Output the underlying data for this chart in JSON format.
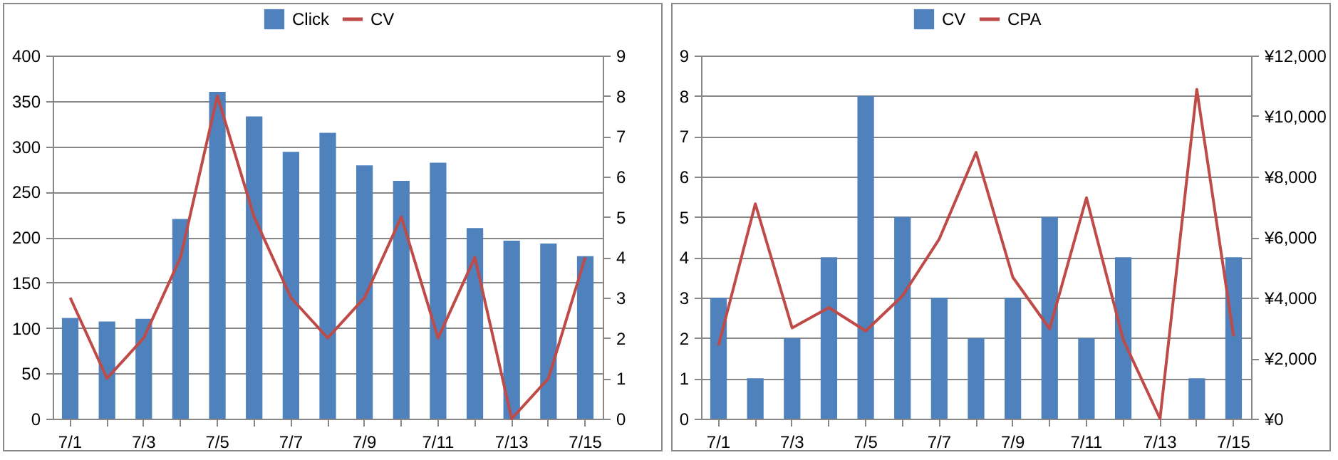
{
  "chart_data": [
    {
      "type": "bar",
      "categories": [
        "7/1",
        null,
        "7/3",
        null,
        "7/5",
        null,
        "7/7",
        null,
        "7/9",
        null,
        "7/11",
        null,
        "7/13",
        null,
        "7/15"
      ],
      "series": [
        {
          "name": "Click",
          "color": "#4f81bd",
          "values": [
            111,
            107,
            110,
            220,
            360,
            333,
            294,
            315,
            279,
            262,
            282,
            210,
            196,
            193,
            179
          ]
        },
        {
          "name": "CV",
          "type": "line",
          "axis": "y2",
          "color": "#be4b48",
          "values": [
            3,
            1,
            2,
            4,
            8,
            5,
            3,
            2,
            3,
            5,
            2,
            4,
            0,
            1,
            4
          ]
        }
      ],
      "ylim": [
        0,
        400
      ],
      "yticks": [
        0,
        50,
        100,
        150,
        200,
        250,
        300,
        350,
        400
      ],
      "y2lim": [
        0,
        9
      ],
      "y2ticks": [
        0,
        1,
        2,
        3,
        4,
        5,
        6,
        7,
        8,
        9
      ],
      "grid": "y",
      "legend": "top",
      "marker": "none",
      "line_style": "solid"
    },
    {
      "type": "bar",
      "categories": [
        "7/1",
        null,
        "7/3",
        null,
        "7/5",
        null,
        "7/7",
        null,
        "7/9",
        null,
        "7/11",
        null,
        "7/13",
        null,
        "7/15"
      ],
      "series": [
        {
          "name": "CV",
          "color": "#4f81bd",
          "values": [
            3,
            1,
            2,
            4,
            8,
            5,
            3,
            2,
            3,
            5,
            2,
            4,
            0,
            1,
            4
          ]
        },
        {
          "name": "CPA",
          "type": "line",
          "axis": "y2",
          "color": "#be4b48",
          "values": [
            2420,
            7100,
            3000,
            3670,
            2900,
            4060,
            5940,
            8800,
            4670,
            2970,
            7300,
            2610,
            0,
            10880,
            2720
          ]
        }
      ],
      "ylim": [
        0,
        9
      ],
      "yticks": [
        0,
        1,
        2,
        3,
        4,
        5,
        6,
        7,
        8,
        9
      ],
      "y2lim": [
        0,
        12000
      ],
      "y2ticks": [
        {
          "value": 0,
          "label": "¥0"
        },
        {
          "value": 2000,
          "label": "¥2,000"
        },
        {
          "value": 4000,
          "label": "¥4,000"
        },
        {
          "value": 6000,
          "label": "¥6,000"
        },
        {
          "value": 8000,
          "label": "¥8,000"
        },
        {
          "value": 10000,
          "label": "¥10,000"
        },
        {
          "value": 12000,
          "label": "¥12,000"
        }
      ],
      "grid": "y",
      "legend": "top",
      "marker": "none",
      "line_style": "solid"
    }
  ]
}
